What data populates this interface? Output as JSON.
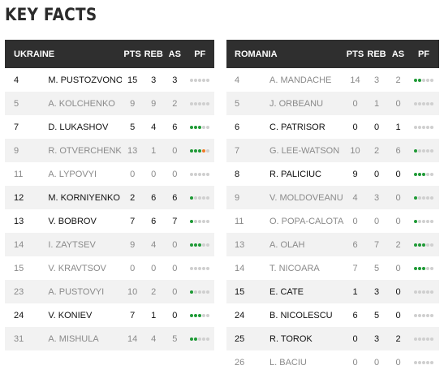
{
  "title": "KEY FACTS",
  "columns": {
    "pts": "PTS",
    "reb": "REB",
    "as": "AS",
    "pf": "PF"
  },
  "colors": {
    "header_bg": "#2f2f2f",
    "foul_dot": "#1f9a36",
    "foul_warning_dot": "#f07a2a",
    "empty_dot": "#cfcfcf"
  },
  "teams": [
    {
      "name": "UKRAINE",
      "players": [
        {
          "no": "4",
          "name": "M. PUSTOZVONOV",
          "pts": "15",
          "reb": "3",
          "as": "3",
          "pf": 0,
          "starter": true
        },
        {
          "no": "5",
          "name": "A. KOLCHENKO",
          "pts": "9",
          "reb": "9",
          "as": "2",
          "pf": 0,
          "starter": false
        },
        {
          "no": "7",
          "name": "D. LUKASHOV",
          "pts": "5",
          "reb": "4",
          "as": "6",
          "pf": 3,
          "starter": true
        },
        {
          "no": "9",
          "name": "R. OTVERCHENKO",
          "pts": "13",
          "reb": "1",
          "as": "0",
          "pf": 4,
          "starter": false,
          "warning": true
        },
        {
          "no": "11",
          "name": "A. LYPOVYI",
          "pts": "0",
          "reb": "0",
          "as": "0",
          "pf": 0,
          "starter": false
        },
        {
          "no": "12",
          "name": "M. KORNIYENKO",
          "pts": "2",
          "reb": "6",
          "as": "6",
          "pf": 1,
          "starter": true
        },
        {
          "no": "13",
          "name": "V. BOBROV",
          "pts": "7",
          "reb": "6",
          "as": "7",
          "pf": 1,
          "starter": true
        },
        {
          "no": "14",
          "name": "I. ZAYTSEV",
          "pts": "9",
          "reb": "4",
          "as": "0",
          "pf": 3,
          "starter": false
        },
        {
          "no": "15",
          "name": "V. KRAVTSOV",
          "pts": "0",
          "reb": "0",
          "as": "0",
          "pf": 0,
          "starter": false
        },
        {
          "no": "23",
          "name": "A. PUSTOVYI",
          "pts": "10",
          "reb": "2",
          "as": "0",
          "pf": 1,
          "starter": false
        },
        {
          "no": "24",
          "name": "V. KONIEV",
          "pts": "7",
          "reb": "1",
          "as": "0",
          "pf": 3,
          "starter": true
        },
        {
          "no": "31",
          "name": "A. MISHULA",
          "pts": "14",
          "reb": "4",
          "as": "5",
          "pf": 2,
          "starter": false
        }
      ]
    },
    {
      "name": "ROMANIA",
      "players": [
        {
          "no": "4",
          "name": "A. MANDACHE",
          "pts": "14",
          "reb": "3",
          "as": "2",
          "pf": 2,
          "starter": false
        },
        {
          "no": "5",
          "name": "J. ORBEANU",
          "pts": "0",
          "reb": "1",
          "as": "0",
          "pf": 0,
          "starter": false
        },
        {
          "no": "6",
          "name": "C. PATRISOR",
          "pts": "0",
          "reb": "0",
          "as": "1",
          "pf": 0,
          "starter": true
        },
        {
          "no": "7",
          "name": "G. LEE-WATSON",
          "pts": "10",
          "reb": "2",
          "as": "6",
          "pf": 1,
          "starter": false
        },
        {
          "no": "8",
          "name": "R. PALICIUC",
          "pts": "9",
          "reb": "0",
          "as": "0",
          "pf": 3,
          "starter": true
        },
        {
          "no": "9",
          "name": "V. MOLDOVEANU",
          "pts": "4",
          "reb": "3",
          "as": "0",
          "pf": 1,
          "starter": false
        },
        {
          "no": "11",
          "name": "O. POPA-CALOTA",
          "pts": "0",
          "reb": "0",
          "as": "0",
          "pf": 1,
          "starter": false
        },
        {
          "no": "13",
          "name": "A. OLAH",
          "pts": "6",
          "reb": "7",
          "as": "2",
          "pf": 3,
          "starter": false
        },
        {
          "no": "14",
          "name": "T. NICOARA",
          "pts": "7",
          "reb": "5",
          "as": "0",
          "pf": 3,
          "starter": false
        },
        {
          "no": "15",
          "name": "E. CATE",
          "pts": "1",
          "reb": "3",
          "as": "0",
          "pf": 0,
          "starter": true
        },
        {
          "no": "24",
          "name": "B. NICOLESCU",
          "pts": "6",
          "reb": "5",
          "as": "0",
          "pf": 0,
          "starter": true
        },
        {
          "no": "25",
          "name": "R. TOROK",
          "pts": "0",
          "reb": "3",
          "as": "2",
          "pf": 0,
          "starter": true
        },
        {
          "no": "26",
          "name": "L. BACIU",
          "pts": "0",
          "reb": "0",
          "as": "0",
          "pf": 0,
          "starter": false
        }
      ]
    }
  ]
}
